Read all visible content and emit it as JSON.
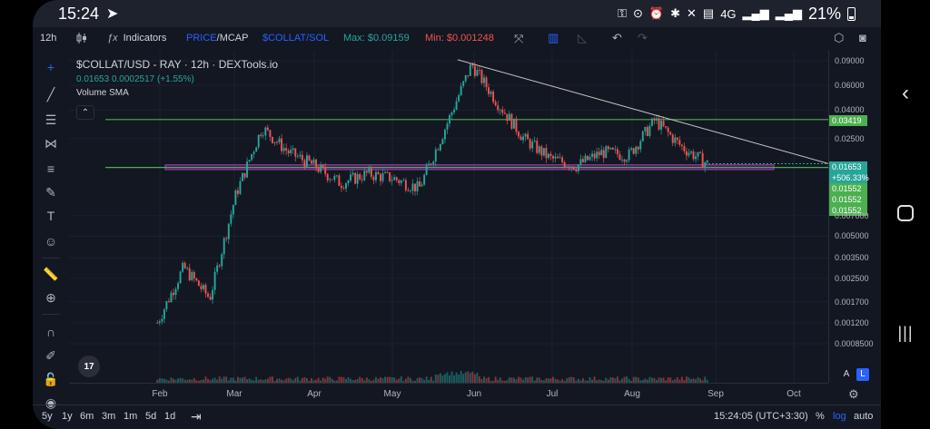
{
  "status_bar": {
    "time": "15:24",
    "battery_text": "21%",
    "network_label": "4G"
  },
  "toolbar": {
    "interval": "12h",
    "indicators_label": "Indicators",
    "price_label": "PRICE",
    "separator": "/",
    "mcap_label": "MCAP",
    "quote_label": "$COLLAT/SOL",
    "max_label": "Max: $0.09159",
    "min_label": "Min: $0.001248"
  },
  "legend": {
    "title": "$COLLAT/USD - RAY · 12h · DEXTools.io",
    "price": "0.01653",
    "change": "0.0002517 (+1.55%)",
    "volume_label": "Volume SMA"
  },
  "price_scale": {
    "ticks": [
      "0.09000",
      "0.06000",
      "0.04000",
      "0.02500",
      "0.007000",
      "0.005000",
      "0.003500",
      "0.002500",
      "0.001700",
      "0.001200",
      "0.0008500"
    ],
    "tag_resistance": "0.03419",
    "tag_current": "0.01653",
    "tag_percent": "+506.33%",
    "tag_support_1": "0.01552",
    "tag_support_2": "0.01552",
    "tag_support_3": "0.01552",
    "auto_btn": "A",
    "log_btn": "L"
  },
  "time_axis": {
    "labels": [
      "Feb",
      "Mar",
      "Apr",
      "May",
      "Jun",
      "Jul",
      "Aug",
      "Sep",
      "Oct"
    ]
  },
  "bottom_bar": {
    "ranges": [
      "5y",
      "1y",
      "6m",
      "3m",
      "1m",
      "5d",
      "1d"
    ],
    "clock": "15:24:05 (UTC+3:30)",
    "percent_btn": "%",
    "log_btn": "log",
    "auto_btn": "auto"
  },
  "colors": {
    "background": "#131722",
    "up": "#26a69a",
    "down": "#ef5350",
    "accent": "#2962ff",
    "support_line": "#4caf50",
    "zone": "#9c27b0"
  },
  "chart_data": {
    "type": "candlestick",
    "title": "$COLLAT/USD - RAY · 12h · DEXTools.io",
    "scale": "log",
    "x_range": [
      "Jan",
      "Oct"
    ],
    "y_range": [
      0.0007,
      0.1
    ],
    "approximate_closes": [
      {
        "x": "late Jan",
        "y": 0.0012
      },
      {
        "x": "early Feb",
        "y": 0.003
      },
      {
        "x": "mid Feb",
        "y": 0.0018
      },
      {
        "x": "late Feb",
        "y": 0.01
      },
      {
        "x": "early Mar",
        "y": 0.03
      },
      {
        "x": "mid Mar",
        "y": 0.02
      },
      {
        "x": "late Mar",
        "y": 0.016
      },
      {
        "x": "early Apr",
        "y": 0.012
      },
      {
        "x": "mid Apr",
        "y": 0.014
      },
      {
        "x": "late Apr",
        "y": 0.013
      },
      {
        "x": "early May",
        "y": 0.011
      },
      {
        "x": "mid May",
        "y": 0.03
      },
      {
        "x": "late May",
        "y": 0.085
      },
      {
        "x": "early Jun",
        "y": 0.045
      },
      {
        "x": "mid Jun",
        "y": 0.025
      },
      {
        "x": "late Jun",
        "y": 0.018
      },
      {
        "x": "early Jul",
        "y": 0.016
      },
      {
        "x": "mid Jul",
        "y": 0.02
      },
      {
        "x": "late Jul",
        "y": 0.019
      },
      {
        "x": "early Aug",
        "y": 0.034
      },
      {
        "x": "mid Aug",
        "y": 0.022
      },
      {
        "x": "late Aug",
        "y": 0.01653
      }
    ],
    "horizontal_lines": [
      {
        "label": "resistance",
        "value": 0.03419
      },
      {
        "label": "support",
        "value": 0.01552
      }
    ],
    "trendline": {
      "from": {
        "x": "late May",
        "y": 0.09159
      },
      "to": {
        "x": "Oct",
        "y": 0.014
      }
    },
    "max": 0.09159,
    "min": 0.001248
  }
}
